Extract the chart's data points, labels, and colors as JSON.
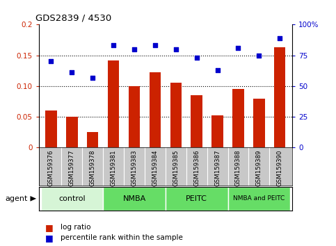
{
  "title": "GDS2839 / 4530",
  "samples": [
    "GSM159376",
    "GSM159377",
    "GSM159378",
    "GSM159381",
    "GSM159383",
    "GSM159384",
    "GSM159385",
    "GSM159386",
    "GSM159387",
    "GSM159388",
    "GSM159389",
    "GSM159390"
  ],
  "log_ratio": [
    0.06,
    0.05,
    0.025,
    0.142,
    0.1,
    0.122,
    0.106,
    0.085,
    0.052,
    0.095,
    0.08,
    0.163
  ],
  "percentile_rank": [
    70,
    61,
    57,
    83,
    80,
    83,
    80,
    73,
    63,
    81,
    75,
    89
  ],
  "bar_color": "#cc2200",
  "scatter_color": "#0000cc",
  "groups": [
    {
      "label": "control",
      "start": 0,
      "end": 3,
      "color": "#d6f5d6"
    },
    {
      "label": "NMBA",
      "start": 3,
      "end": 6,
      "color": "#66dd66"
    },
    {
      "label": "PEITC",
      "start": 6,
      "end": 9,
      "color": "#66dd66"
    },
    {
      "label": "NMBA and PEITC",
      "start": 9,
      "end": 12,
      "color": "#66dd66"
    }
  ],
  "ylim_left": [
    0,
    0.2
  ],
  "ylim_right": [
    0,
    100
  ],
  "yticks_left": [
    0,
    0.05,
    0.1,
    0.15,
    0.2
  ],
  "ytick_labels_left": [
    "0",
    "0.05",
    "0.10",
    "0.15",
    "0.2"
  ],
  "yticks_right": [
    0,
    25,
    50,
    75,
    100
  ],
  "ytick_labels_right": [
    "0",
    "25",
    "50",
    "75",
    "100%"
  ],
  "legend_log_ratio": "log ratio",
  "legend_percentile": "percentile rank within the sample",
  "agent_label": "agent",
  "left_axis_color": "#cc2200",
  "right_axis_color": "#0000cc",
  "tick_area_bg": "#c8c8c8",
  "title_color": "#000000"
}
